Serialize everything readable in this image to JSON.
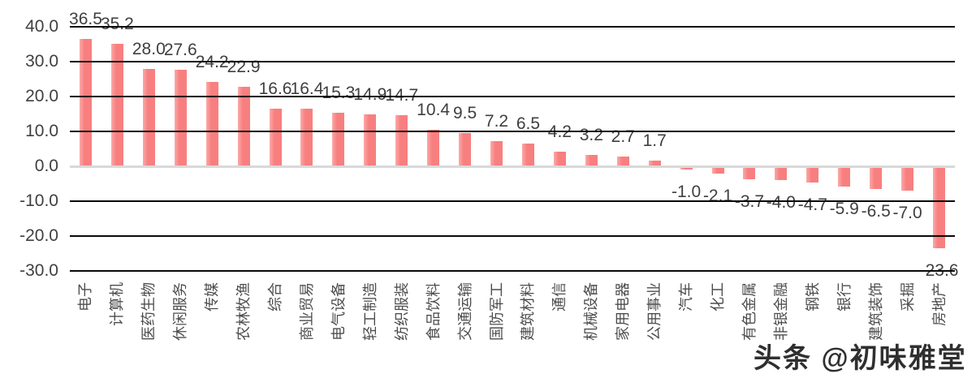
{
  "chart_data": {
    "type": "bar",
    "title": "",
    "xlabel": "",
    "ylabel": "",
    "grid": true,
    "legend": false,
    "ylim": [
      -30,
      40
    ],
    "yticks": [
      40,
      30,
      20,
      10,
      0,
      -10,
      -20,
      -30
    ],
    "ytick_labels": [
      "40.0",
      "30.0",
      "20.0",
      "10.0",
      "0.0",
      "-10.0",
      "-20.0",
      "-30.0"
    ],
    "categories": [
      "电子",
      "计算机",
      "医药生物",
      "休闲服务",
      "传媒",
      "农林牧渔",
      "综合",
      "商业贸易",
      "电气设备",
      "轻工制造",
      "纺织服装",
      "食品饮料",
      "交通运输",
      "国防军工",
      "建筑材料",
      "通信",
      "机械设备",
      "家用电器",
      "公用事业",
      "汽车",
      "化工",
      "有色金属",
      "非银金融",
      "钢铁",
      "银行",
      "建筑装饰",
      "采掘",
      "房地产"
    ],
    "values": [
      36.5,
      35.2,
      28.0,
      27.6,
      24.2,
      22.9,
      16.6,
      16.4,
      15.3,
      14.9,
      14.7,
      10.4,
      9.5,
      7.2,
      6.5,
      4.2,
      3.2,
      2.7,
      1.7,
      -1.0,
      -2.1,
      -3.7,
      -4.0,
      -4.7,
      -5.9,
      -6.5,
      -7.0,
      -23.6
    ],
    "value_labels": [
      "36.5",
      "35.2",
      "28.0",
      "27.6",
      "24.2",
      "22.9",
      "16.6",
      "16.4",
      "15.3",
      "14.9",
      "14.7",
      "10.4",
      "9.5",
      "7.2",
      "6.5",
      "4.2",
      "3.2",
      "2.7",
      "1.7",
      "-1.0",
      "-2.1",
      "-3.7",
      "-4.0",
      "-4.7",
      "-5.9",
      "-6.5",
      "-7.0",
      "-23.6"
    ]
  },
  "colors": {
    "bar": "#f87f7f",
    "bar_highlight": "#fbaaa8",
    "gridline": "#0a0a0a",
    "zero_line": "#d9d9d9",
    "axis_text": "#404040",
    "value_text": "#3f3f3f",
    "category_text": "#4d4d4d",
    "background": "#ffffff"
  },
  "watermark": {
    "text": "头条 @初味雅堂"
  }
}
